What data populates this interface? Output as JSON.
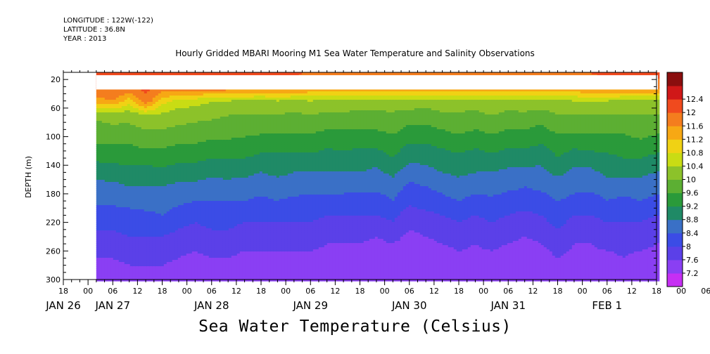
{
  "header": {
    "longitude": "LONGITUDE : 122W(-122)",
    "latitude": "LATITUDE : 36.8N",
    "year": "YEAR : 2013",
    "title": "Hourly Gridded MBARI Mooring M1 Sea Water Temperature and Salinity Observations"
  },
  "footer": {
    "variable_title": "Sea Water Temperature (Celsius)"
  },
  "chart_data": {
    "type": "heatmap",
    "title": "Hourly Gridded MBARI Mooring M1 Sea Water Temperature and Salinity Observations",
    "xlabel": "",
    "ylabel": "DEPTH (m)",
    "colorbar_label": "Sea Water Temperature (Celsius)",
    "xlim_hours": [
      -6,
      138
    ],
    "ylim": [
      300,
      0
    ],
    "y_reversed": true,
    "y_ticks": [
      20,
      60,
      100,
      140,
      180,
      220,
      260,
      300
    ],
    "x_hour_ticks": [
      "18",
      "00",
      "06",
      "12",
      "18",
      "00",
      "06",
      "12",
      "18",
      "00",
      "06",
      "12",
      "18",
      "00",
      "06",
      "12",
      "18",
      "00",
      "06",
      "12",
      "18",
      "00",
      "06",
      "12",
      "18",
      "00",
      "06",
      "12",
      "18"
    ],
    "x_date_labels": [
      {
        "label": "JAN 26",
        "hour": -6
      },
      {
        "label": "JAN 27",
        "hour": 6
      },
      {
        "label": "JAN 28",
        "hour": 30
      },
      {
        "label": "JAN 29",
        "hour": 54
      },
      {
        "label": "JAN 30",
        "hour": 78
      },
      {
        "label": "JAN 31",
        "hour": 102
      },
      {
        "label": "FEB  1",
        "hour": 126
      }
    ],
    "data_start_hour": 2,
    "data_end_hour": 138,
    "no_data_depth_range": [
      14,
      34
    ],
    "colorbar": {
      "levels": [
        7.2,
        7.6,
        8,
        8.4,
        8.8,
        9.2,
        9.6,
        10,
        10.4,
        10.8,
        11.2,
        11.6,
        12,
        12.4
      ],
      "colors": [
        "#c62ff3",
        "#8a3ff3",
        "#5b40e8",
        "#3b4ce6",
        "#3a70c6",
        "#1f8a66",
        "#2a9a3a",
        "#5caf33",
        "#8cc22a",
        "#c9dc14",
        "#f0d214",
        "#f7a814",
        "#f47d1e",
        "#f04a1e",
        "#d01818",
        "#8a0e0e"
      ]
    },
    "time_hours": [
      2,
      6,
      10,
      14,
      18,
      22,
      26,
      30,
      34,
      38,
      42,
      46,
      50,
      54,
      58,
      62,
      66,
      70,
      74,
      78,
      82,
      86,
      90,
      94,
      98,
      102,
      106,
      110,
      114,
      118,
      122,
      126,
      130,
      134,
      138
    ],
    "depths_m": [
      10,
      30,
      50,
      70,
      90,
      110,
      130,
      150,
      170,
      190,
      210,
      230,
      250,
      270,
      290,
      300
    ],
    "temperature_profiles": [
      [
        12.4,
        12.2,
        11.4,
        10.1,
        9.8,
        9.6,
        9.3,
        8.9,
        8.7,
        8.5,
        8.2,
        8.0,
        7.9,
        7.6,
        7.4,
        7.3
      ],
      [
        12.3,
        12.1,
        11.6,
        10.2,
        9.9,
        9.6,
        9.3,
        9.0,
        8.7,
        8.5,
        8.2,
        8.0,
        7.8,
        7.6,
        7.4,
        7.3
      ],
      [
        12.3,
        12.1,
        11.0,
        10.1,
        9.9,
        9.6,
        9.4,
        9.0,
        8.8,
        8.5,
        8.3,
        8.1,
        7.9,
        7.7,
        7.5,
        7.4
      ],
      [
        12.3,
        12.1,
        11.9,
        10.4,
        10.0,
        9.7,
        9.4,
        9.0,
        8.8,
        8.6,
        8.3,
        8.1,
        7.9,
        7.7,
        7.5,
        7.4
      ],
      [
        12.2,
        12.0,
        11.0,
        10.3,
        10.0,
        9.7,
        9.4,
        9.1,
        8.8,
        8.6,
        8.4,
        8.1,
        7.9,
        7.7,
        7.5,
        7.4
      ],
      [
        12.2,
        12.0,
        10.6,
        10.2,
        9.9,
        9.6,
        9.3,
        9.0,
        8.7,
        8.5,
        8.2,
        8.0,
        7.8,
        7.6,
        7.4,
        7.3
      ],
      [
        12.2,
        12.0,
        10.6,
        10.1,
        9.9,
        9.6,
        9.3,
        9.0,
        8.7,
        8.4,
        8.1,
        7.9,
        7.7,
        7.5,
        7.4,
        7.3
      ],
      [
        12.3,
        12.1,
        10.4,
        10.1,
        9.8,
        9.5,
        9.2,
        8.9,
        8.6,
        8.4,
        8.2,
        8.0,
        7.8,
        7.6,
        7.4,
        7.3
      ],
      [
        12.2,
        12.0,
        10.4,
        10.0,
        9.8,
        9.5,
        9.2,
        8.9,
        8.7,
        8.4,
        8.2,
        8.0,
        7.8,
        7.6,
        7.4,
        7.3
      ],
      [
        12.2,
        12.0,
        10.3,
        10.0,
        9.7,
        9.5,
        9.2,
        8.9,
        8.6,
        8.4,
        8.1,
        7.9,
        7.7,
        7.5,
        7.4,
        7.3
      ],
      [
        12.1,
        11.9,
        10.3,
        10.0,
        9.7,
        9.4,
        9.1,
        8.8,
        8.6,
        8.3,
        8.1,
        7.9,
        7.7,
        7.5,
        7.4,
        7.3
      ],
      [
        12.1,
        11.9,
        10.4,
        10.0,
        9.7,
        9.4,
        9.1,
        8.9,
        8.6,
        8.4,
        8.1,
        7.9,
        7.7,
        7.5,
        7.3,
        7.3
      ],
      [
        12.1,
        11.9,
        10.3,
        9.9,
        9.7,
        9.4,
        9.1,
        8.8,
        8.6,
        8.3,
        8.1,
        7.9,
        7.7,
        7.5,
        7.4,
        7.3
      ],
      [
        11.9,
        11.7,
        10.4,
        10.0,
        9.7,
        9.4,
        9.1,
        8.8,
        8.5,
        8.3,
        8.1,
        7.9,
        7.7,
        7.5,
        7.3,
        7.3
      ],
      [
        11.9,
        11.7,
        10.3,
        9.9,
        9.6,
        9.3,
        9.0,
        8.8,
        8.5,
        8.3,
        8.0,
        7.8,
        7.6,
        7.5,
        7.3,
        7.3
      ],
      [
        11.9,
        11.7,
        10.3,
        9.9,
        9.6,
        9.3,
        9.1,
        8.8,
        8.5,
        8.3,
        8.0,
        7.8,
        7.6,
        7.4,
        7.3,
        7.2
      ],
      [
        11.8,
        11.6,
        10.2,
        9.9,
        9.6,
        9.3,
        9.0,
        8.8,
        8.5,
        8.2,
        8.0,
        7.8,
        7.6,
        7.4,
        7.3,
        7.2
      ],
      [
        11.8,
        11.6,
        10.2,
        9.9,
        9.6,
        9.3,
        9.0,
        8.7,
        8.5,
        8.2,
        8.0,
        7.7,
        7.5,
        7.4,
        7.3,
        7.2
      ],
      [
        11.9,
        11.7,
        10.3,
        9.9,
        9.7,
        9.4,
        9.2,
        8.9,
        8.6,
        8.4,
        8.1,
        7.9,
        7.6,
        7.4,
        7.3,
        7.2
      ],
      [
        11.9,
        11.7,
        10.3,
        9.8,
        9.5,
        9.2,
        8.9,
        8.6,
        8.3,
        8.1,
        7.8,
        7.6,
        7.4,
        7.3,
        7.2,
        7.2
      ],
      [
        11.8,
        11.6,
        10.2,
        9.8,
        9.5,
        9.2,
        8.9,
        8.7,
        8.4,
        8.2,
        7.9,
        7.7,
        7.5,
        7.3,
        7.2,
        7.2
      ],
      [
        11.9,
        11.7,
        10.3,
        9.9,
        9.6,
        9.3,
        9.0,
        8.8,
        8.5,
        8.3,
        8.0,
        7.8,
        7.6,
        7.4,
        7.3,
        7.2
      ],
      [
        11.9,
        11.7,
        10.3,
        9.9,
        9.7,
        9.4,
        9.1,
        8.9,
        8.6,
        8.4,
        8.1,
        7.9,
        7.7,
        7.5,
        7.3,
        7.3
      ],
      [
        11.8,
        11.6,
        10.2,
        9.9,
        9.6,
        9.3,
        9.0,
        8.8,
        8.5,
        8.3,
        8.0,
        7.8,
        7.6,
        7.5,
        7.3,
        7.3
      ],
      [
        11.9,
        11.7,
        10.3,
        10.0,
        9.7,
        9.4,
        9.1,
        8.8,
        8.6,
        8.3,
        8.1,
        7.9,
        7.7,
        7.5,
        7.4,
        7.3
      ],
      [
        11.8,
        11.6,
        10.2,
        9.9,
        9.6,
        9.3,
        9.0,
        8.7,
        8.5,
        8.2,
        8.0,
        7.8,
        7.6,
        7.4,
        7.3,
        7.3
      ],
      [
        11.8,
        11.6,
        10.3,
        9.9,
        9.6,
        9.3,
        9.0,
        8.7,
        8.4,
        8.2,
        7.9,
        7.7,
        7.5,
        7.4,
        7.3,
        7.2
      ],
      [
        11.9,
        11.7,
        10.3,
        9.8,
        9.5,
        9.2,
        8.9,
        8.7,
        8.5,
        8.2,
        8.0,
        7.8,
        7.6,
        7.4,
        7.3,
        7.3
      ],
      [
        11.9,
        11.7,
        10.3,
        10.0,
        9.7,
        9.4,
        9.2,
        8.9,
        8.6,
        8.4,
        8.2,
        8.0,
        7.8,
        7.6,
        7.4,
        7.3
      ],
      [
        11.9,
        11.7,
        10.4,
        10.0,
        9.7,
        9.3,
        9.0,
        8.7,
        8.5,
        8.3,
        8.0,
        7.8,
        7.6,
        7.5,
        7.4,
        7.3
      ],
      [
        12.0,
        11.8,
        10.4,
        10.0,
        9.7,
        9.4,
        9.0,
        8.7,
        8.5,
        8.2,
        8.0,
        7.8,
        7.6,
        7.5,
        7.4,
        7.3
      ],
      [
        12.1,
        11.9,
        10.4,
        10.0,
        9.7,
        9.4,
        9.1,
        8.9,
        8.6,
        8.4,
        8.1,
        7.9,
        7.7,
        7.5,
        7.4,
        7.3
      ],
      [
        12.1,
        11.9,
        10.3,
        10.0,
        9.7,
        9.4,
        9.2,
        8.9,
        8.6,
        8.3,
        8.1,
        7.9,
        7.7,
        7.6,
        7.4,
        7.3
      ],
      [
        12.1,
        11.9,
        10.3,
        10.0,
        9.8,
        9.5,
        9.2,
        8.9,
        8.6,
        8.4,
        8.1,
        7.9,
        7.7,
        7.5,
        7.4,
        7.3
      ],
      [
        12.1,
        11.9,
        10.3,
        10.0,
        9.7,
        9.4,
        9.1,
        8.8,
        8.5,
        8.3,
        8.0,
        7.8,
        7.6,
        7.5,
        7.3,
        7.3
      ]
    ]
  }
}
